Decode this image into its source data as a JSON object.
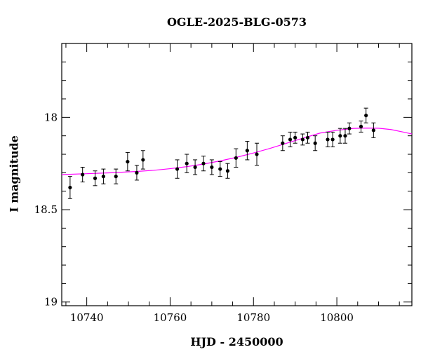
{
  "chart_data": {
    "type": "scatter",
    "title": "OGLE-2025-BLG-0573",
    "xlabel": "HJD - 2450000",
    "ylabel": "I magnitude",
    "xlim": [
      10734,
      10818
    ],
    "ylim": [
      19.02,
      17.6
    ],
    "y_inverted": true,
    "x_ticks": [
      10740,
      10760,
      10780,
      10800
    ],
    "y_ticks": [
      18,
      18.5,
      19
    ],
    "y_tick_labels": [
      "18",
      "18.5",
      "19"
    ],
    "grid": false,
    "colors": {
      "points": "#000000",
      "model": "#ff00ff"
    },
    "series": [
      {
        "kind": "points_with_errorbars",
        "points": [
          {
            "x": 10736.0,
            "y": 18.38,
            "err": 0.06
          },
          {
            "x": 10739.0,
            "y": 18.31,
            "err": 0.04
          },
          {
            "x": 10742.0,
            "y": 18.33,
            "err": 0.04
          },
          {
            "x": 10744.0,
            "y": 18.32,
            "err": 0.04
          },
          {
            "x": 10747.0,
            "y": 18.32,
            "err": 0.04
          },
          {
            "x": 10749.8,
            "y": 18.24,
            "err": 0.05
          },
          {
            "x": 10752.0,
            "y": 18.3,
            "err": 0.04
          },
          {
            "x": 10753.5,
            "y": 18.23,
            "err": 0.05
          },
          {
            "x": 10761.7,
            "y": 18.28,
            "err": 0.05
          },
          {
            "x": 10764.0,
            "y": 18.25,
            "err": 0.05
          },
          {
            "x": 10766.0,
            "y": 18.27,
            "err": 0.04
          },
          {
            "x": 10768.0,
            "y": 18.25,
            "err": 0.04
          },
          {
            "x": 10770.0,
            "y": 18.27,
            "err": 0.04
          },
          {
            "x": 10772.0,
            "y": 18.28,
            "err": 0.04
          },
          {
            "x": 10773.8,
            "y": 18.29,
            "err": 0.04
          },
          {
            "x": 10775.8,
            "y": 18.22,
            "err": 0.05
          },
          {
            "x": 10778.5,
            "y": 18.18,
            "err": 0.05
          },
          {
            "x": 10780.8,
            "y": 18.2,
            "err": 0.06
          },
          {
            "x": 10787.0,
            "y": 18.14,
            "err": 0.04
          },
          {
            "x": 10788.8,
            "y": 18.12,
            "err": 0.04
          },
          {
            "x": 10790.0,
            "y": 18.11,
            "err": 0.03
          },
          {
            "x": 10791.8,
            "y": 18.12,
            "err": 0.03
          },
          {
            "x": 10793.0,
            "y": 18.11,
            "err": 0.03
          },
          {
            "x": 10794.8,
            "y": 18.14,
            "err": 0.04
          },
          {
            "x": 10797.8,
            "y": 18.12,
            "err": 0.04
          },
          {
            "x": 10799.0,
            "y": 18.12,
            "err": 0.04
          },
          {
            "x": 10800.8,
            "y": 18.1,
            "err": 0.04
          },
          {
            "x": 10802.0,
            "y": 18.1,
            "err": 0.04
          },
          {
            "x": 10803.0,
            "y": 18.06,
            "err": 0.03
          },
          {
            "x": 10805.8,
            "y": 18.05,
            "err": 0.03
          },
          {
            "x": 10807.0,
            "y": 17.99,
            "err": 0.04
          },
          {
            "x": 10808.8,
            "y": 18.07,
            "err": 0.04
          }
        ]
      },
      {
        "kind": "model_curve",
        "x": [
          10734,
          10740,
          10746,
          10752,
          10756,
          10760,
          10764,
          10768,
          10772,
          10776,
          10780,
          10784,
          10788,
          10792,
          10796,
          10800,
          10804,
          10807,
          10810,
          10813,
          10816,
          10818
        ],
        "y": [
          18.31,
          18.305,
          18.3,
          18.293,
          18.287,
          18.278,
          18.267,
          18.253,
          18.236,
          18.216,
          18.193,
          18.168,
          18.14,
          18.112,
          18.085,
          18.07,
          18.06,
          18.058,
          18.059,
          18.066,
          18.08,
          18.09
        ]
      }
    ]
  }
}
